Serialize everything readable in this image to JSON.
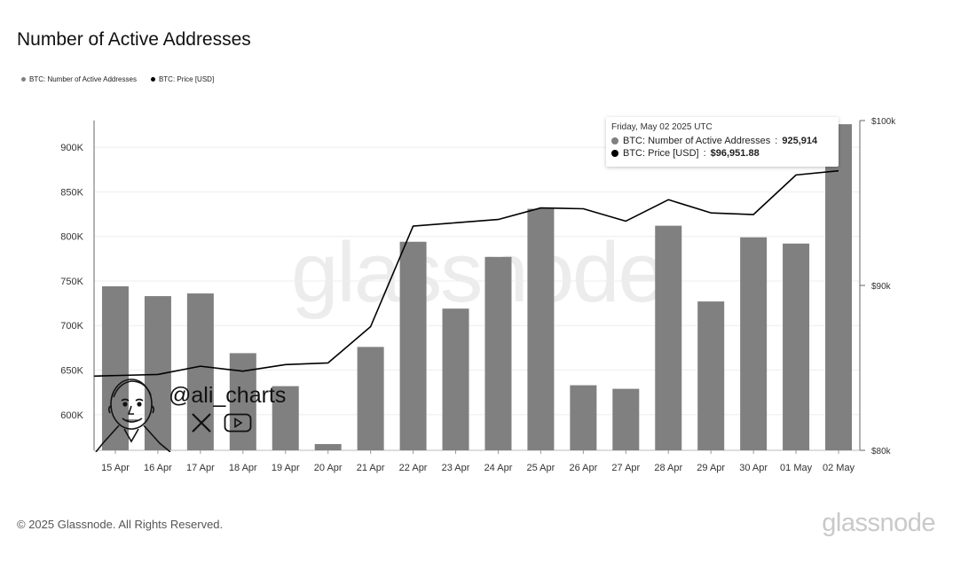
{
  "title": "Number of Active Addresses",
  "legend": [
    {
      "label": "BTC: Number of Active Addresses",
      "color": "#808080"
    },
    {
      "label": "BTC: Price [USD]",
      "color": "#000000"
    }
  ],
  "tooltip": {
    "date": "Friday, May 02 2025 UTC",
    "rows": [
      {
        "label": "BTC: Number of Active Addresses",
        "value": "925,914",
        "color": "#808080"
      },
      {
        "label": "BTC: Price [USD]",
        "value": "$96,951.88",
        "color": "#000000"
      }
    ]
  },
  "watermark": "glassnode",
  "footer": {
    "copyright": "© 2025 Glassnode. All Rights Reserved.",
    "brand": "glassnode"
  },
  "overlay": {
    "handle": "@ali_charts",
    "x_icon": "x-logo-icon",
    "youtube_icon": "youtube-icon"
  },
  "chart_data": {
    "type": "bar",
    "categories": [
      "15 Apr",
      "16 Apr",
      "17 Apr",
      "18 Apr",
      "19 Apr",
      "20 Apr",
      "21 Apr",
      "22 Apr",
      "23 Apr",
      "24 Apr",
      "25 Apr",
      "26 Apr",
      "27 Apr",
      "28 Apr",
      "29 Apr",
      "30 Apr",
      "01 May",
      "02 May"
    ],
    "series": [
      {
        "name": "BTC: Number of Active Addresses",
        "type": "bar",
        "axis": "left",
        "color": "#808080",
        "values": [
          744000,
          733000,
          736000,
          669000,
          632000,
          567000,
          676000,
          794000,
          719000,
          777000,
          831000,
          633000,
          629000,
          812000,
          727000,
          799000,
          792000,
          925914
        ]
      },
      {
        "name": "BTC: Price [USD]",
        "type": "line",
        "axis": "right",
        "color": "#000000",
        "values": [
          84500,
          84600,
          85100,
          84800,
          85200,
          85300,
          87500,
          93600,
          93800,
          94000,
          94700,
          94650,
          93900,
          95200,
          94400,
          94300,
          96700,
          96951.88
        ]
      }
    ],
    "y_left": {
      "min": 560000,
      "max": 930000,
      "ticks": [
        600000,
        650000,
        700000,
        750000,
        800000,
        850000,
        900000
      ],
      "tick_labels": [
        "600K",
        "650K",
        "700K",
        "750K",
        "800K",
        "850K",
        "900K"
      ]
    },
    "y_right": {
      "min": 80000,
      "max": 100000,
      "ticks": [
        80000,
        90000,
        100000
      ],
      "tick_labels": [
        "$80k",
        "$90k",
        "$100k"
      ]
    },
    "grid": true,
    "legend_position": "top-left"
  }
}
